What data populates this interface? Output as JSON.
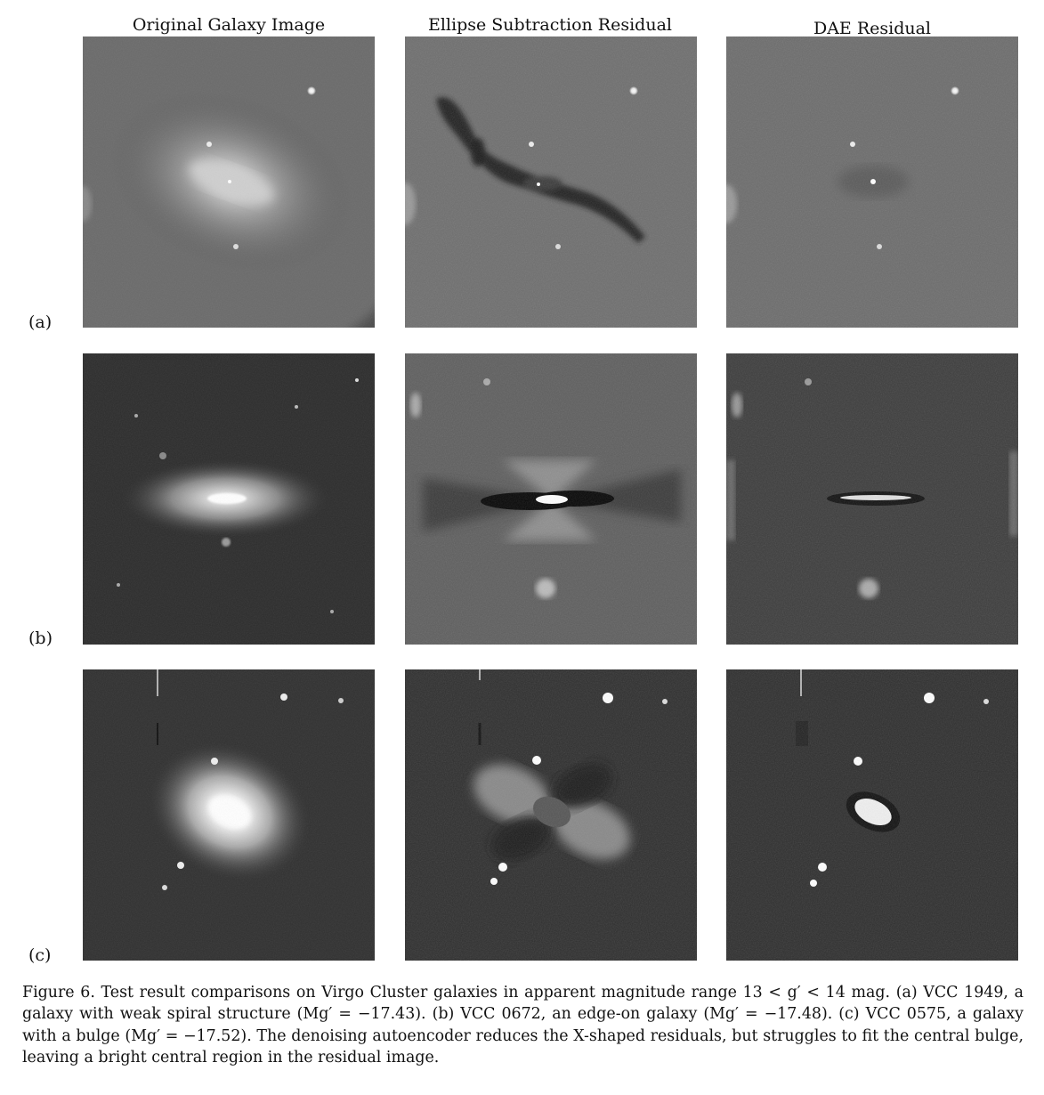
{
  "columns": [
    "Original Galaxy Image",
    "Ellipse Subtraction Residual",
    "DAE Residual"
  ],
  "rows": [
    "(a)",
    "(b)",
    "(c)"
  ],
  "caption": {
    "label": "Figure 6.",
    "text": "Test result comparisons on Virgo Cluster galaxies in apparent magnitude range 13 < g′ < 14 mag. (a) VCC 1949, a galaxy with weak spiral structure (Mg′ = −17.43). (b) VCC 0672, an edge-on galaxy (Mg′ = −17.48). (c) VCC 0575, a galaxy with a bulge (Mg′ = −17.52). The denoising autoencoder reduces the X-shaped residuals, but struggles to fit the central bulge, leaving a bright central region in the residual image."
  }
}
